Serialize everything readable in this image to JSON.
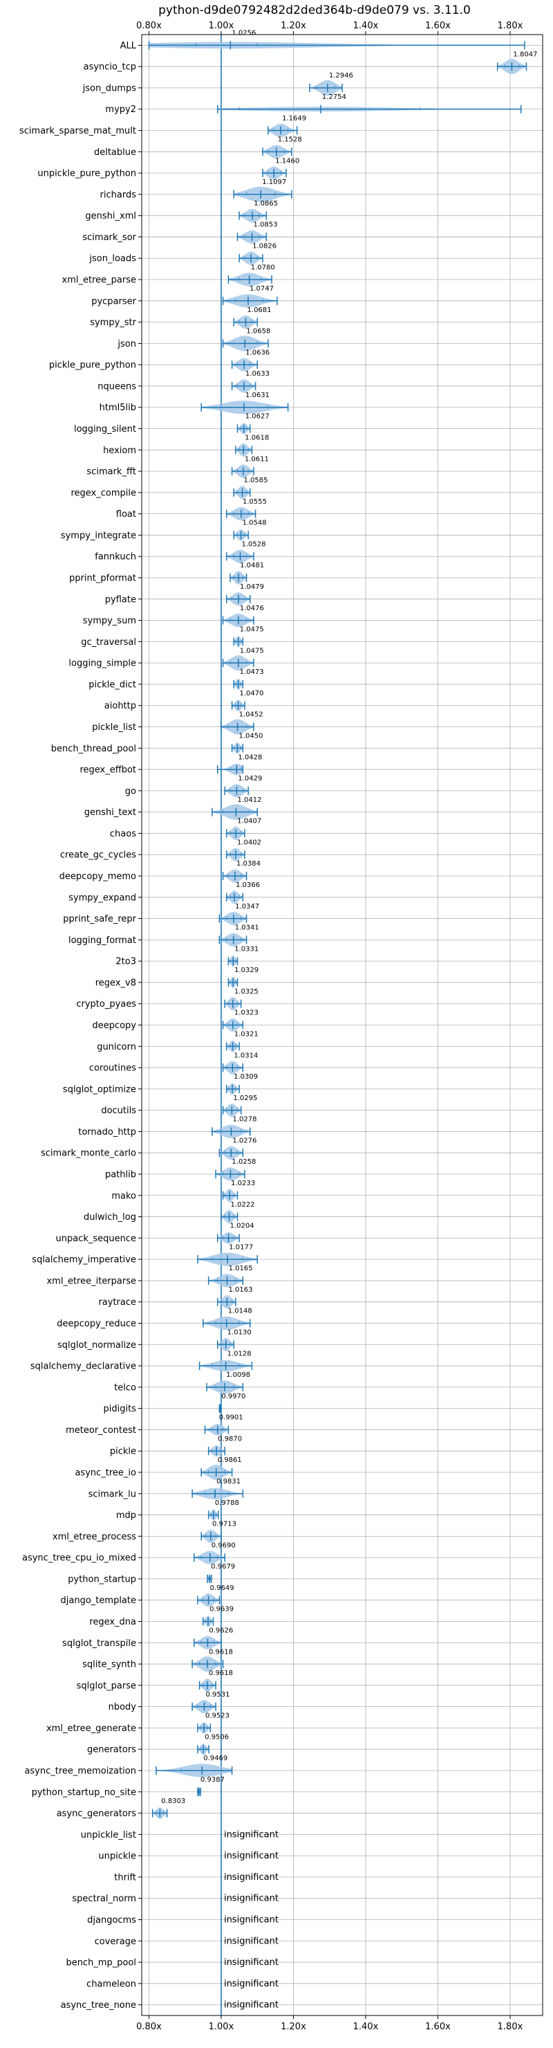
{
  "chart_data": {
    "type": "violin",
    "title": "python-d9de0792482d2ded364b-d9de079 vs. 3.11.0",
    "xlim": [
      0.78,
      1.89
    ],
    "xticks": [
      0.8,
      1.0,
      1.2,
      1.4,
      1.6,
      1.8
    ],
    "xtick_labels": [
      "0.80x",
      "1.00x",
      "1.20x",
      "1.40x",
      "1.60x",
      "1.80x"
    ],
    "reference_line": 1.0,
    "grid": true,
    "insignificant_label": "insignificant",
    "colors": {
      "body": "#a6c8e8",
      "line": "#1f77b4",
      "grid": "#b0b0b0"
    },
    "benchmarks": [
      {
        "name": "ALL",
        "value": "1.0256",
        "median": 1.0256,
        "min": 0.8,
        "max": 1.84,
        "q1": 0.93,
        "q3": 1.1,
        "w": 0.35
      },
      {
        "name": "asyncio_tcp",
        "value": "1.8047",
        "median": 1.8047,
        "min": 1.765,
        "max": 1.845,
        "q1": 1.785,
        "q3": 1.825,
        "w": 0.8
      },
      {
        "name": "json_dumps",
        "value": "1.2946",
        "median": 1.2946,
        "min": 1.245,
        "max": 1.335,
        "q1": 1.265,
        "q3": 1.315,
        "w": 0.8
      },
      {
        "name": "mypy2",
        "value": "1.2754",
        "median": 1.2754,
        "min": 0.99,
        "max": 1.83,
        "q1": 1.05,
        "q3": 1.55,
        "w": 0.25
      },
      {
        "name": "scimark_sparse_mat_mult",
        "value": "1.1649",
        "median": 1.1649,
        "min": 1.13,
        "max": 1.21,
        "q1": 1.145,
        "q3": 1.185,
        "w": 0.7
      },
      {
        "name": "deltablue",
        "value": "1.1528",
        "median": 1.1528,
        "min": 1.115,
        "max": 1.195,
        "q1": 1.13,
        "q3": 1.175,
        "w": 0.7
      },
      {
        "name": "unpickle_pure_python",
        "value": "1.1460",
        "median": 1.146,
        "min": 1.115,
        "max": 1.18,
        "q1": 1.13,
        "q3": 1.165,
        "w": 0.7
      },
      {
        "name": "richards",
        "value": "1.1097",
        "median": 1.1097,
        "min": 1.035,
        "max": 1.195,
        "q1": 1.07,
        "q3": 1.15,
        "w": 0.8
      },
      {
        "name": "genshi_xml",
        "value": "1.0865",
        "median": 1.0865,
        "min": 1.05,
        "max": 1.125,
        "q1": 1.065,
        "q3": 1.105,
        "w": 0.7
      },
      {
        "name": "scimark_sor",
        "value": "1.0853",
        "median": 1.0853,
        "min": 1.045,
        "max": 1.125,
        "q1": 1.065,
        "q3": 1.105,
        "w": 0.7
      },
      {
        "name": "json_loads",
        "value": "1.0826",
        "median": 1.0826,
        "min": 1.05,
        "max": 1.115,
        "q1": 1.065,
        "q3": 1.1,
        "w": 0.7
      },
      {
        "name": "xml_etree_parse",
        "value": "1.0780",
        "median": 1.078,
        "min": 1.02,
        "max": 1.14,
        "q1": 1.05,
        "q3": 1.11,
        "w": 0.7
      },
      {
        "name": "pycparser",
        "value": "1.0747",
        "median": 1.0747,
        "min": 1.005,
        "max": 1.155,
        "q1": 1.04,
        "q3": 1.115,
        "w": 0.7
      },
      {
        "name": "sympy_str",
        "value": "1.0681",
        "median": 1.0681,
        "min": 1.035,
        "max": 1.1,
        "q1": 1.05,
        "q3": 1.085,
        "w": 0.7
      },
      {
        "name": "json",
        "value": "1.0658",
        "median": 1.0658,
        "min": 1.005,
        "max": 1.13,
        "q1": 1.035,
        "q3": 1.1,
        "w": 0.8
      },
      {
        "name": "pickle_pure_python",
        "value": "1.0636",
        "median": 1.0636,
        "min": 1.03,
        "max": 1.1,
        "q1": 1.045,
        "q3": 1.08,
        "w": 0.7
      },
      {
        "name": "nqueens",
        "value": "1.0633",
        "median": 1.0633,
        "min": 1.03,
        "max": 1.095,
        "q1": 1.045,
        "q3": 1.08,
        "w": 0.7
      },
      {
        "name": "html5lib",
        "value": "1.0631",
        "median": 1.0631,
        "min": 0.945,
        "max": 1.185,
        "q1": 1.0,
        "q3": 1.13,
        "w": 0.7
      },
      {
        "name": "logging_silent",
        "value": "1.0627",
        "median": 1.0627,
        "min": 1.045,
        "max": 1.08,
        "q1": 1.055,
        "q3": 1.07,
        "w": 0.6
      },
      {
        "name": "hexiom",
        "value": "1.0618",
        "median": 1.0618,
        "min": 1.04,
        "max": 1.085,
        "q1": 1.05,
        "q3": 1.075,
        "w": 0.7
      },
      {
        "name": "scimark_fft",
        "value": "1.0611",
        "median": 1.0611,
        "min": 1.03,
        "max": 1.09,
        "q1": 1.045,
        "q3": 1.075,
        "w": 0.7
      },
      {
        "name": "regex_compile",
        "value": "1.0585",
        "median": 1.0585,
        "min": 1.035,
        "max": 1.08,
        "q1": 1.045,
        "q3": 1.07,
        "w": 0.7
      },
      {
        "name": "float",
        "value": "1.0555",
        "median": 1.0555,
        "min": 1.015,
        "max": 1.095,
        "q1": 1.035,
        "q3": 1.075,
        "w": 0.7
      },
      {
        "name": "sympy_integrate",
        "value": "1.0548",
        "median": 1.0548,
        "min": 1.035,
        "max": 1.075,
        "q1": 1.045,
        "q3": 1.065,
        "w": 0.6
      },
      {
        "name": "fannkuch",
        "value": "1.0528",
        "median": 1.0528,
        "min": 1.015,
        "max": 1.09,
        "q1": 1.035,
        "q3": 1.07,
        "w": 0.7
      },
      {
        "name": "pprint_pformat",
        "value": "1.0481",
        "median": 1.0481,
        "min": 1.025,
        "max": 1.07,
        "q1": 1.035,
        "q3": 1.06,
        "w": 0.7
      },
      {
        "name": "pyflate",
        "value": "1.0479",
        "median": 1.0479,
        "min": 1.015,
        "max": 1.08,
        "q1": 1.03,
        "q3": 1.065,
        "w": 0.7
      },
      {
        "name": "sympy_sum",
        "value": "1.0476",
        "median": 1.0476,
        "min": 1.005,
        "max": 1.09,
        "q1": 1.025,
        "q3": 1.07,
        "w": 0.7
      },
      {
        "name": "gc_traversal",
        "value": "1.0475",
        "median": 1.0475,
        "min": 1.035,
        "max": 1.06,
        "q1": 1.04,
        "q3": 1.055,
        "w": 0.6
      },
      {
        "name": "logging_simple",
        "value": "1.0475",
        "median": 1.0475,
        "min": 1.005,
        "max": 1.09,
        "q1": 1.025,
        "q3": 1.07,
        "w": 0.8
      },
      {
        "name": "pickle_dict",
        "value": "1.0473",
        "median": 1.0473,
        "min": 1.035,
        "max": 1.06,
        "q1": 1.04,
        "q3": 1.055,
        "w": 0.6
      },
      {
        "name": "aiohttp",
        "value": "1.0470",
        "median": 1.047,
        "min": 1.03,
        "max": 1.065,
        "q1": 1.04,
        "q3": 1.055,
        "w": 0.6
      },
      {
        "name": "pickle_list",
        "value": "1.0452",
        "median": 1.0452,
        "min": 1.0,
        "max": 1.09,
        "q1": 1.02,
        "q3": 1.07,
        "w": 0.8
      },
      {
        "name": "bench_thread_pool",
        "value": "1.0450",
        "median": 1.045,
        "min": 1.03,
        "max": 1.06,
        "q1": 1.035,
        "q3": 1.055,
        "w": 0.6
      },
      {
        "name": "regex_effbot",
        "value": "1.0428",
        "median": 1.0428,
        "min": 0.99,
        "max": 1.06,
        "q1": 1.025,
        "q3": 1.055,
        "w": 0.6
      },
      {
        "name": "go",
        "value": "1.0429",
        "median": 1.0429,
        "min": 1.01,
        "max": 1.075,
        "q1": 1.025,
        "q3": 1.06,
        "w": 0.7
      },
      {
        "name": "genshi_text",
        "value": "1.0412",
        "median": 1.0412,
        "min": 0.975,
        "max": 1.1,
        "q1": 1.005,
        "q3": 1.075,
        "w": 0.8
      },
      {
        "name": "chaos",
        "value": "1.0407",
        "median": 1.0407,
        "min": 1.015,
        "max": 1.065,
        "q1": 1.025,
        "q3": 1.055,
        "w": 0.7
      },
      {
        "name": "create_gc_cycles",
        "value": "1.0402",
        "median": 1.0402,
        "min": 1.015,
        "max": 1.065,
        "q1": 1.025,
        "q3": 1.055,
        "w": 0.7
      },
      {
        "name": "deepcopy_memo",
        "value": "1.0384",
        "median": 1.0384,
        "min": 1.005,
        "max": 1.07,
        "q1": 1.02,
        "q3": 1.055,
        "w": 0.7
      },
      {
        "name": "sympy_expand",
        "value": "1.0366",
        "median": 1.0366,
        "min": 1.015,
        "max": 1.06,
        "q1": 1.025,
        "q3": 1.05,
        "w": 0.7
      },
      {
        "name": "pprint_safe_repr",
        "value": "1.0347",
        "median": 1.0347,
        "min": 0.995,
        "max": 1.07,
        "q1": 1.015,
        "q3": 1.055,
        "w": 0.7
      },
      {
        "name": "logging_format",
        "value": "1.0341",
        "median": 1.0341,
        "min": 0.995,
        "max": 1.07,
        "q1": 1.015,
        "q3": 1.055,
        "w": 0.7
      },
      {
        "name": "2to3",
        "value": "1.0331",
        "median": 1.0331,
        "min": 1.02,
        "max": 1.045,
        "q1": 1.025,
        "q3": 1.04,
        "w": 0.6
      },
      {
        "name": "regex_v8",
        "value": "1.0329",
        "median": 1.0329,
        "min": 1.02,
        "max": 1.045,
        "q1": 1.025,
        "q3": 1.04,
        "w": 0.6
      },
      {
        "name": "crypto_pyaes",
        "value": "1.0325",
        "median": 1.0325,
        "min": 1.01,
        "max": 1.055,
        "q1": 1.02,
        "q3": 1.045,
        "w": 0.7
      },
      {
        "name": "deepcopy",
        "value": "1.0323",
        "median": 1.0323,
        "min": 1.005,
        "max": 1.06,
        "q1": 1.02,
        "q3": 1.045,
        "w": 0.7
      },
      {
        "name": "gunicorn",
        "value": "1.0321",
        "median": 1.0321,
        "min": 1.015,
        "max": 1.05,
        "q1": 1.025,
        "q3": 1.04,
        "w": 0.6
      },
      {
        "name": "coroutines",
        "value": "1.0314",
        "median": 1.0314,
        "min": 1.005,
        "max": 1.06,
        "q1": 1.015,
        "q3": 1.045,
        "w": 0.7
      },
      {
        "name": "sqlglot_optimize",
        "value": "1.0309",
        "median": 1.0309,
        "min": 1.015,
        "max": 1.05,
        "q1": 1.02,
        "q3": 1.04,
        "w": 0.6
      },
      {
        "name": "docutils",
        "value": "1.0295",
        "median": 1.0295,
        "min": 1.005,
        "max": 1.055,
        "q1": 1.015,
        "q3": 1.045,
        "w": 0.7
      },
      {
        "name": "tornado_http",
        "value": "1.0278",
        "median": 1.0278,
        "min": 0.975,
        "max": 1.08,
        "q1": 1.0,
        "q3": 1.055,
        "w": 0.7
      },
      {
        "name": "scimark_monte_carlo",
        "value": "1.0276",
        "median": 1.0276,
        "min": 0.995,
        "max": 1.06,
        "q1": 1.01,
        "q3": 1.045,
        "w": 0.7
      },
      {
        "name": "pathlib",
        "value": "1.0258",
        "median": 1.0258,
        "min": 0.985,
        "max": 1.065,
        "q1": 1.005,
        "q3": 1.05,
        "w": 0.7
      },
      {
        "name": "mako",
        "value": "1.0233",
        "median": 1.0233,
        "min": 1.005,
        "max": 1.045,
        "q1": 1.01,
        "q3": 1.035,
        "w": 0.7
      },
      {
        "name": "dulwich_log",
        "value": "1.0222",
        "median": 1.0222,
        "min": 1.0,
        "max": 1.045,
        "q1": 1.01,
        "q3": 1.035,
        "w": 0.7
      },
      {
        "name": "unpack_sequence",
        "value": "1.0204",
        "median": 1.0204,
        "min": 0.99,
        "max": 1.05,
        "q1": 1.005,
        "q3": 1.035,
        "w": 0.6
      },
      {
        "name": "sqlalchemy_imperative",
        "value": "1.0177",
        "median": 1.0177,
        "min": 0.935,
        "max": 1.1,
        "q1": 0.975,
        "q3": 1.06,
        "w": 0.7
      },
      {
        "name": "xml_etree_iterparse",
        "value": "1.0165",
        "median": 1.0165,
        "min": 0.965,
        "max": 1.06,
        "q1": 0.99,
        "q3": 1.04,
        "w": 0.7
      },
      {
        "name": "raytrace",
        "value": "1.0163",
        "median": 1.0163,
        "min": 0.99,
        "max": 1.04,
        "q1": 1.0,
        "q3": 1.03,
        "w": 0.7
      },
      {
        "name": "deepcopy_reduce",
        "value": "1.0148",
        "median": 1.0148,
        "min": 0.95,
        "max": 1.08,
        "q1": 0.985,
        "q3": 1.05,
        "w": 0.7
      },
      {
        "name": "sqlglot_normalize",
        "value": "1.0130",
        "median": 1.013,
        "min": 0.99,
        "max": 1.035,
        "q1": 1.0,
        "q3": 1.025,
        "w": 0.7
      },
      {
        "name": "sqlalchemy_declarative",
        "value": "1.0128",
        "median": 1.0128,
        "min": 0.94,
        "max": 1.085,
        "q1": 0.975,
        "q3": 1.05,
        "w": 0.6
      },
      {
        "name": "telco",
        "value": "1.0098",
        "median": 1.0098,
        "min": 0.96,
        "max": 1.06,
        "q1": 0.985,
        "q3": 1.035,
        "w": 0.7
      },
      {
        "name": "pidigits",
        "value": "0.9970",
        "median": 0.997,
        "min": 0.995,
        "max": 0.999,
        "q1": 0.996,
        "q3": 0.998,
        "w": 0.15
      },
      {
        "name": "meteor_contest",
        "value": "0.9901",
        "median": 0.9901,
        "min": 0.955,
        "max": 1.02,
        "q1": 0.975,
        "q3": 1.005,
        "w": 0.6
      },
      {
        "name": "pickle",
        "value": "0.9870",
        "median": 0.987,
        "min": 0.965,
        "max": 1.01,
        "q1": 0.975,
        "q3": 0.998,
        "w": 0.6
      },
      {
        "name": "async_tree_io",
        "value": "0.9861",
        "median": 0.9861,
        "min": 0.945,
        "max": 1.03,
        "q1": 0.965,
        "q3": 1.01,
        "w": 0.8
      },
      {
        "name": "scimark_lu",
        "value": "0.9831",
        "median": 0.9831,
        "min": 0.92,
        "max": 1.06,
        "q1": 0.955,
        "q3": 1.02,
        "w": 0.6
      },
      {
        "name": "mdp",
        "value": "0.9788",
        "median": 0.9788,
        "min": 0.965,
        "max": 0.992,
        "q1": 0.972,
        "q3": 0.986,
        "w": 0.6
      },
      {
        "name": "xml_etree_process",
        "value": "0.9713",
        "median": 0.9713,
        "min": 0.945,
        "max": 1.0,
        "q1": 0.958,
        "q3": 0.985,
        "w": 0.7
      },
      {
        "name": "async_tree_cpu_io_mixed",
        "value": "0.9690",
        "median": 0.969,
        "min": 0.925,
        "max": 1.01,
        "q1": 0.945,
        "q3": 0.99,
        "w": 0.7
      },
      {
        "name": "python_startup",
        "value": "0.9679",
        "median": 0.9679,
        "min": 0.962,
        "max": 0.973,
        "q1": 0.965,
        "q3": 0.971,
        "w": 0.5
      },
      {
        "name": "django_template",
        "value": "0.9649",
        "median": 0.9649,
        "min": 0.935,
        "max": 0.995,
        "q1": 0.95,
        "q3": 0.98,
        "w": 0.7
      },
      {
        "name": "regex_dna",
        "value": "0.9639",
        "median": 0.9639,
        "min": 0.95,
        "max": 0.978,
        "q1": 0.956,
        "q3": 0.972,
        "w": 0.6
      },
      {
        "name": "sqlglot_transpile",
        "value": "0.9626",
        "median": 0.9626,
        "min": 0.925,
        "max": 1.0,
        "q1": 0.945,
        "q3": 0.98,
        "w": 0.7
      },
      {
        "name": "sqlite_synth",
        "value": "0.9618",
        "median": 0.9618,
        "min": 0.92,
        "max": 1.005,
        "q1": 0.94,
        "q3": 0.985,
        "w": 0.8
      },
      {
        "name": "sqlglot_parse",
        "value": "0.9618",
        "median": 0.9618,
        "min": 0.94,
        "max": 0.985,
        "q1": 0.95,
        "q3": 0.975,
        "w": 0.7
      },
      {
        "name": "nbody",
        "value": "0.9531",
        "median": 0.9531,
        "min": 0.92,
        "max": 0.985,
        "q1": 0.935,
        "q3": 0.97,
        "w": 0.7
      },
      {
        "name": "xml_etree_generate",
        "value": "0.9523",
        "median": 0.9523,
        "min": 0.935,
        "max": 0.97,
        "q1": 0.943,
        "q3": 0.962,
        "w": 0.6
      },
      {
        "name": "generators",
        "value": "0.9506",
        "median": 0.9506,
        "min": 0.935,
        "max": 0.966,
        "q1": 0.943,
        "q3": 0.958,
        "w": 0.6
      },
      {
        "name": "async_tree_memoization",
        "value": "0.9469",
        "median": 0.9469,
        "min": 0.82,
        "max": 1.03,
        "q1": 0.89,
        "q3": 1.0,
        "w": 0.7
      },
      {
        "name": "python_startup_no_site",
        "value": "0.9387",
        "median": 0.9387,
        "min": 0.935,
        "max": 0.943,
        "q1": 0.937,
        "q3": 0.941,
        "w": 0.5
      },
      {
        "name": "async_generators",
        "value": "0.8303",
        "median": 0.8303,
        "min": 0.81,
        "max": 0.85,
        "q1": 0.82,
        "q3": 0.84,
        "w": 0.6
      },
      {
        "name": "unpickle_list",
        "value": null
      },
      {
        "name": "unpickle",
        "value": null
      },
      {
        "name": "thrift",
        "value": null
      },
      {
        "name": "spectral_norm",
        "value": null
      },
      {
        "name": "djangocms",
        "value": null
      },
      {
        "name": "coverage",
        "value": null
      },
      {
        "name": "bench_mp_pool",
        "value": null
      },
      {
        "name": "chameleon",
        "value": null
      },
      {
        "name": "async_tree_none",
        "value": null
      }
    ]
  }
}
